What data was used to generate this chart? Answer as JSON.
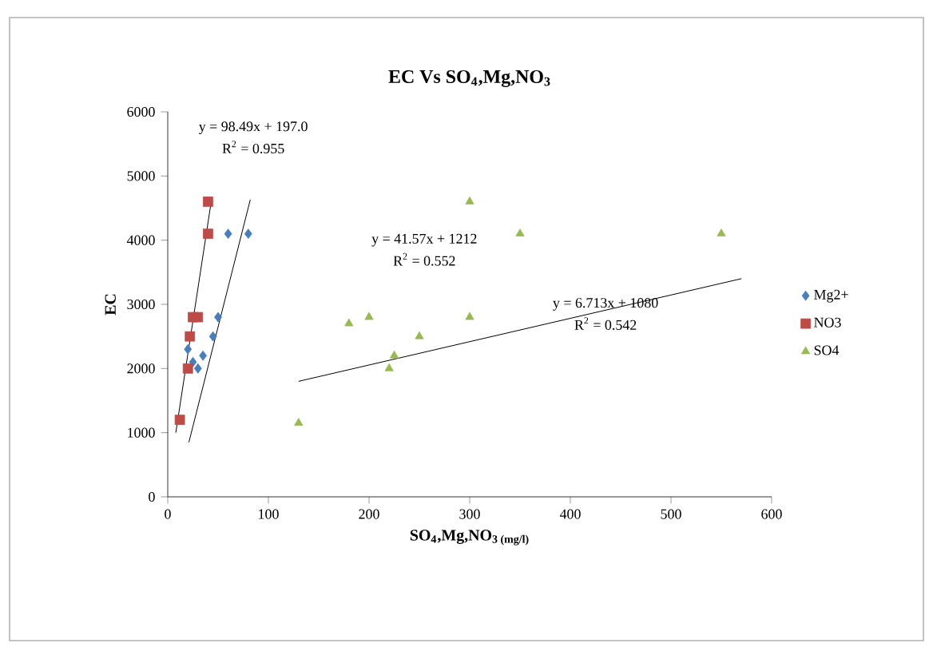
{
  "chart_data": {
    "type": "scatter",
    "title": "**EC Vs SO$_{4}$,Mg,NO$_{3}$**",
    "xlabel": "**SO$_{4}$,Mg,NO$_{3 (mg/l)}$**",
    "ylabel": "**EC**",
    "xlim": [
      0,
      600
    ],
    "ylim": [
      0,
      6000
    ],
    "xticks": [
      0,
      100,
      200,
      300,
      400,
      500,
      600
    ],
    "yticks": [
      0,
      1000,
      2000,
      3000,
      4000,
      5000,
      6000
    ],
    "legend": "right",
    "grid": false,
    "series": [
      {
        "name": "Mg2+",
        "color": "#4a7ebb",
        "marker": "diamond",
        "x": [
          20,
          25,
          30,
          35,
          45,
          50,
          60,
          80
        ],
        "values": [
          2300,
          2100,
          2000,
          2200,
          2500,
          2800,
          4100,
          4100
        ]
      },
      {
        "name": "NO3",
        "color": "#be4b48",
        "marker": "square",
        "x": [
          12,
          20,
          22,
          25,
          30,
          40,
          40
        ],
        "values": [
          1200,
          2000,
          2500,
          2800,
          2800,
          4100,
          4600
        ]
      },
      {
        "name": "SO4",
        "color": "#98b954",
        "marker": "triangle",
        "x": [
          130,
          180,
          200,
          220,
          225,
          250,
          300,
          300,
          350,
          550
        ],
        "values": [
          1150,
          2700,
          2800,
          2000,
          2200,
          2500,
          2800,
          4600,
          4100,
          4100
        ]
      },
      {
        "type": "line",
        "color": "#000000",
        "marker": "none",
        "x": [
          21,
          82
        ],
        "values": [
          850,
          4630
        ]
      },
      {
        "type": "line",
        "color": "#000000",
        "marker": "none",
        "x": [
          8,
          43
        ],
        "values": [
          1000,
          4580
        ]
      },
      {
        "type": "line",
        "color": "#000000",
        "marker": "none",
        "x": [
          130,
          570
        ],
        "values": [
          1800,
          3400
        ]
      }
    ],
    "annotations": [
      "y = 98.49x + 197.0",
      "R$^{2}$ = 0.955",
      "y = 41.57x + 1212",
      "R$^{2}$ = 0.552",
      "y = 6.713x + 1080",
      "R$^{2}$ = 0.542"
    ]
  }
}
